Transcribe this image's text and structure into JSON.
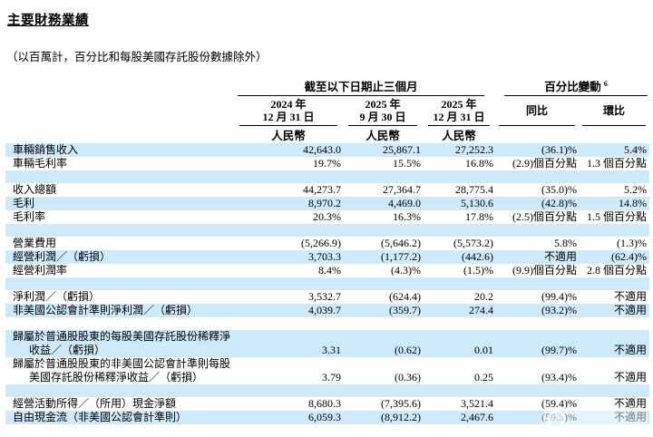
{
  "page": {
    "title": "主要財務業績",
    "subtitle": "（以百萬計，百分比和每股美國存託股份數據除外）"
  },
  "colors": {
    "row_stripe": "#cde9fa",
    "text": "#000000"
  },
  "table": {
    "group_headers": {
      "period": "截至以下日期止三個月",
      "change": "百分比變動",
      "change_footnote": "6"
    },
    "date_columns": [
      {
        "line1": "2024 年",
        "line2": "12 月 31 日",
        "currency": "人民幣"
      },
      {
        "line1": "2025 年",
        "line2": "9 月 30 日",
        "currency": "人民幣"
      },
      {
        "line1": "2025 年",
        "line2": "12 月 31 日",
        "currency": "人民幣"
      }
    ],
    "change_columns": [
      "同比",
      "環比"
    ],
    "rows": [
      {
        "label": "車輛銷售收入",
        "v1": "42,643.0",
        "v2": "25,867.1",
        "v3": "27,252.3",
        "yoy": "(36.1)%",
        "qoq": "5.4%",
        "shaded": true
      },
      {
        "label": "車輛毛利率",
        "v1": "19.7%",
        "v2": "15.5%",
        "v3": "16.8%",
        "yoy": "(2.9)個百分點",
        "qoq": "1.3 個百分點",
        "shaded": false
      },
      {
        "spacer": true,
        "shaded": true
      },
      {
        "label": "收入總額",
        "v1": "44,273.7",
        "v2": "27,364.7",
        "v3": "28,775.4",
        "yoy": "(35.0)%",
        "qoq": "5.2%",
        "shaded": false
      },
      {
        "label": "毛利",
        "v1": "8,970.2",
        "v2": "4,469.0",
        "v3": "5,130.6",
        "yoy": "(42.8)%",
        "qoq": "14.8%",
        "shaded": true
      },
      {
        "label": "毛利率",
        "v1": "20.3%",
        "v2": "16.3%",
        "v3": "17.8%",
        "yoy": "(2.5)個百分點",
        "qoq": "1.5 個百分點",
        "shaded": false
      },
      {
        "spacer": true,
        "shaded": true
      },
      {
        "label": "營業費用",
        "v1": "(5,266.9)",
        "v2": "(5,646.2)",
        "v3": "(5,573.2)",
        "yoy": "5.8%",
        "qoq": "(1.3)%",
        "shaded": false
      },
      {
        "label": "經營利潤／（虧損）",
        "v1": "3,703.3",
        "v2": "(1,177.2)",
        "v3": "(442.6)",
        "yoy": "不適用",
        "qoq": "(62.4)%",
        "shaded": true
      },
      {
        "label": "經營利潤率",
        "v1": "8.4%",
        "v2": "(4.3)%",
        "v3": "(1.5)%",
        "yoy": "(9.9)個百分點",
        "qoq": "2.8 個百分點",
        "shaded": false
      },
      {
        "spacer": true,
        "shaded": true
      },
      {
        "label": "淨利潤／（虧損）",
        "v1": "3,532.7",
        "v2": "(624.4)",
        "v3": "20.2",
        "yoy": "(99.4)%",
        "qoq": "不適用",
        "shaded": false
      },
      {
        "label": "非美國公認會計準則淨利潤／（虧損）",
        "v1": "4,039.7",
        "v2": "(359.7)",
        "v3": "274.4",
        "yoy": "(93.2)%",
        "qoq": "不適用",
        "shaded": true
      },
      {
        "spacer": true,
        "shaded": false
      },
      {
        "label": "歸屬於普通股股東的每股美國存託股份稀釋淨\n收益／（虧損）",
        "v1": "3.31",
        "v2": "(0.62)",
        "v3": "0.01",
        "yoy": "(99.7)%",
        "qoq": "不適用",
        "shaded": true
      },
      {
        "label": "歸屬於普通股股東的非美國公認會計準則每股\n美國存託股份稀釋淨收益／（虧損）",
        "v1": "3.79",
        "v2": "(0.36)",
        "v3": "0.25",
        "yoy": "(93.4)%",
        "qoq": "不適用",
        "shaded": false
      },
      {
        "spacer": true,
        "shaded": true
      },
      {
        "label": "經營活動所得／（所用）現金淨額",
        "v1": "8,680.3",
        "v2": "(7,395.6)",
        "v3": "3,521.4",
        "yoy": "(59.4)%",
        "qoq": "不適用",
        "shaded": false
      },
      {
        "label": "自由現金流（非美國公認會計準則）",
        "v1": "6,059.3",
        "v2": "(8,912.2)",
        "v3": "2,467.6",
        "yoy": "(59.3)%",
        "qoq": "不適用",
        "shaded": true
      }
    ]
  }
}
